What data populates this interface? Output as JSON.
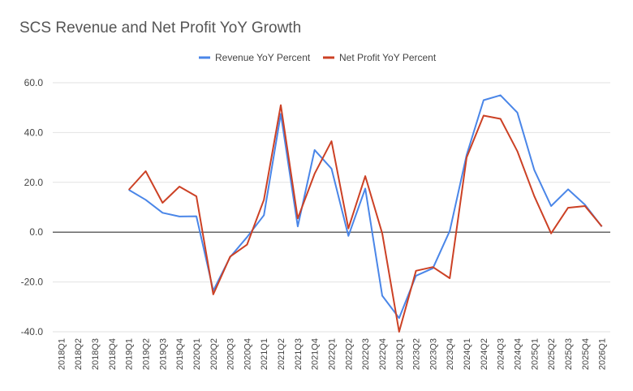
{
  "chart_data": {
    "type": "line",
    "title": "SCS Revenue and Net Profit YoY Growth",
    "xlabel": "",
    "ylabel": "",
    "ylim": [
      -40,
      60
    ],
    "yticks": [
      "60.0",
      "40.0",
      "20.0",
      "0.0",
      "-20.0",
      "-40.0"
    ],
    "ytick_values": [
      60,
      40,
      20,
      0,
      -20,
      -40
    ],
    "grid": true,
    "legend_position": "top",
    "categories": [
      "2018Q1",
      "2018Q2",
      "2018Q3",
      "2018Q4",
      "2019Q1",
      "2019Q2",
      "2019Q3",
      "2019Q4",
      "2020Q1",
      "2020Q2",
      "2020Q3",
      "2020Q4",
      "2021Q1",
      "2021Q2",
      "2021Q3",
      "2021Q4",
      "2022Q1",
      "2022Q2",
      "2022Q3",
      "2022Q4",
      "2023Q1",
      "2023Q2",
      "2023Q3",
      "2023Q4",
      "2024Q1",
      "2024Q2",
      "2024Q3",
      "2024Q4",
      "2025Q1",
      "2025Q2",
      "2025Q3",
      "2025Q4",
      "2026Q1"
    ],
    "series": [
      {
        "name": "Revenue YoY Percent",
        "color": "#4a86e8",
        "values": [
          null,
          null,
          null,
          null,
          17.0,
          13.0,
          7.8,
          6.3,
          6.4,
          -23.5,
          -10.0,
          -2.0,
          6.8,
          47.5,
          2.3,
          33.0,
          25.5,
          -1.5,
          17.5,
          -25.5,
          -34.5,
          -17.5,
          -14.5,
          0.5,
          31.0,
          53.0,
          55.0,
          48.0,
          25.0,
          10.5,
          17.2,
          11.0,
          2.2
        ]
      },
      {
        "name": "Net Profit YoY Percent",
        "color": "#cc4125",
        "values": [
          null,
          null,
          null,
          null,
          17.0,
          24.5,
          11.8,
          18.3,
          14.4,
          -25.0,
          -9.8,
          -5.0,
          13.0,
          51.0,
          5.5,
          23.5,
          36.5,
          1.5,
          22.5,
          -0.5,
          -40.0,
          -15.5,
          -14.0,
          -18.5,
          30.0,
          46.8,
          45.5,
          32.5,
          14.5,
          -0.5,
          9.8,
          10.5,
          2.3
        ]
      }
    ]
  }
}
